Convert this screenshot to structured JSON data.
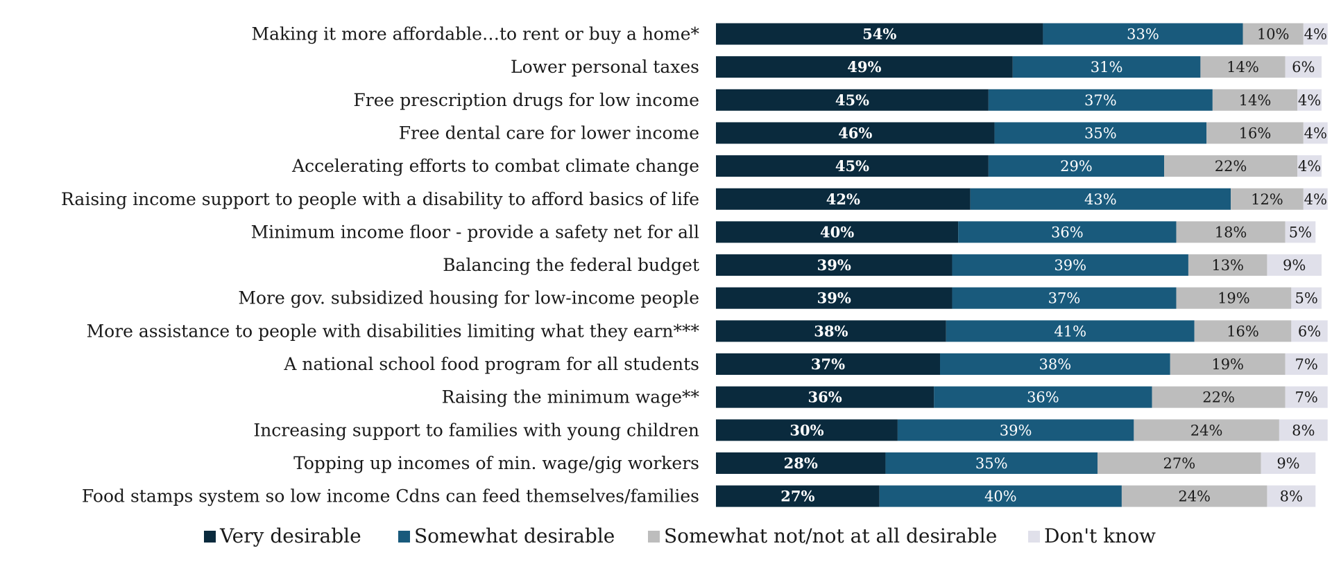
{
  "chart_data": {
    "type": "bar",
    "orientation": "horizontal",
    "stacked": true,
    "categories": [
      "Making it more affordable…to rent or buy a home*",
      "Lower personal taxes",
      "Free prescription drugs for low income",
      "Free dental care for lower income",
      "Accelerating efforts to combat climate change",
      "Raising income support to people with a disability to afford basics of life",
      "Minimum income floor - provide a safety net for all",
      "Balancing the federal budget",
      "More gov. subsidized  housing for low-income people",
      "More assistance to people with disabilities limiting what they earn***",
      "A national school food program for all students",
      "Raising the minimum wage**",
      "Increasing support to families with young children",
      "Topping up incomes of min. wage/gig workers",
      "Food stamps system so low income Cdns can feed themselves/families"
    ],
    "series": [
      {
        "name": "Very desirable",
        "color": "#0a2a3d",
        "label_color": "#ffffff",
        "values": [
          54,
          49,
          45,
          46,
          45,
          42,
          40,
          39,
          39,
          38,
          37,
          36,
          30,
          28,
          27
        ]
      },
      {
        "name": "Somewhat desirable",
        "color": "#195a7c",
        "label_color": "#ffffff",
        "values": [
          33,
          31,
          37,
          35,
          29,
          43,
          36,
          39,
          37,
          41,
          38,
          36,
          39,
          35,
          40
        ]
      },
      {
        "name": "Somewhat not/not at all desirable",
        "color": "#bdbdbd",
        "label_color": "#1a1a1a",
        "values": [
          10,
          14,
          14,
          16,
          22,
          12,
          18,
          13,
          19,
          16,
          19,
          22,
          24,
          27,
          24
        ]
      },
      {
        "name": "Don't know",
        "color": "#e0e0ea",
        "label_color": "#1a1a1a",
        "values": [
          4,
          6,
          4,
          4,
          4,
          4,
          5,
          9,
          5,
          6,
          7,
          7,
          8,
          9,
          8
        ]
      }
    ],
    "value_suffix": "%",
    "xlim": [
      0,
      100
    ],
    "grid": false,
    "legend_position": "bottom"
  }
}
